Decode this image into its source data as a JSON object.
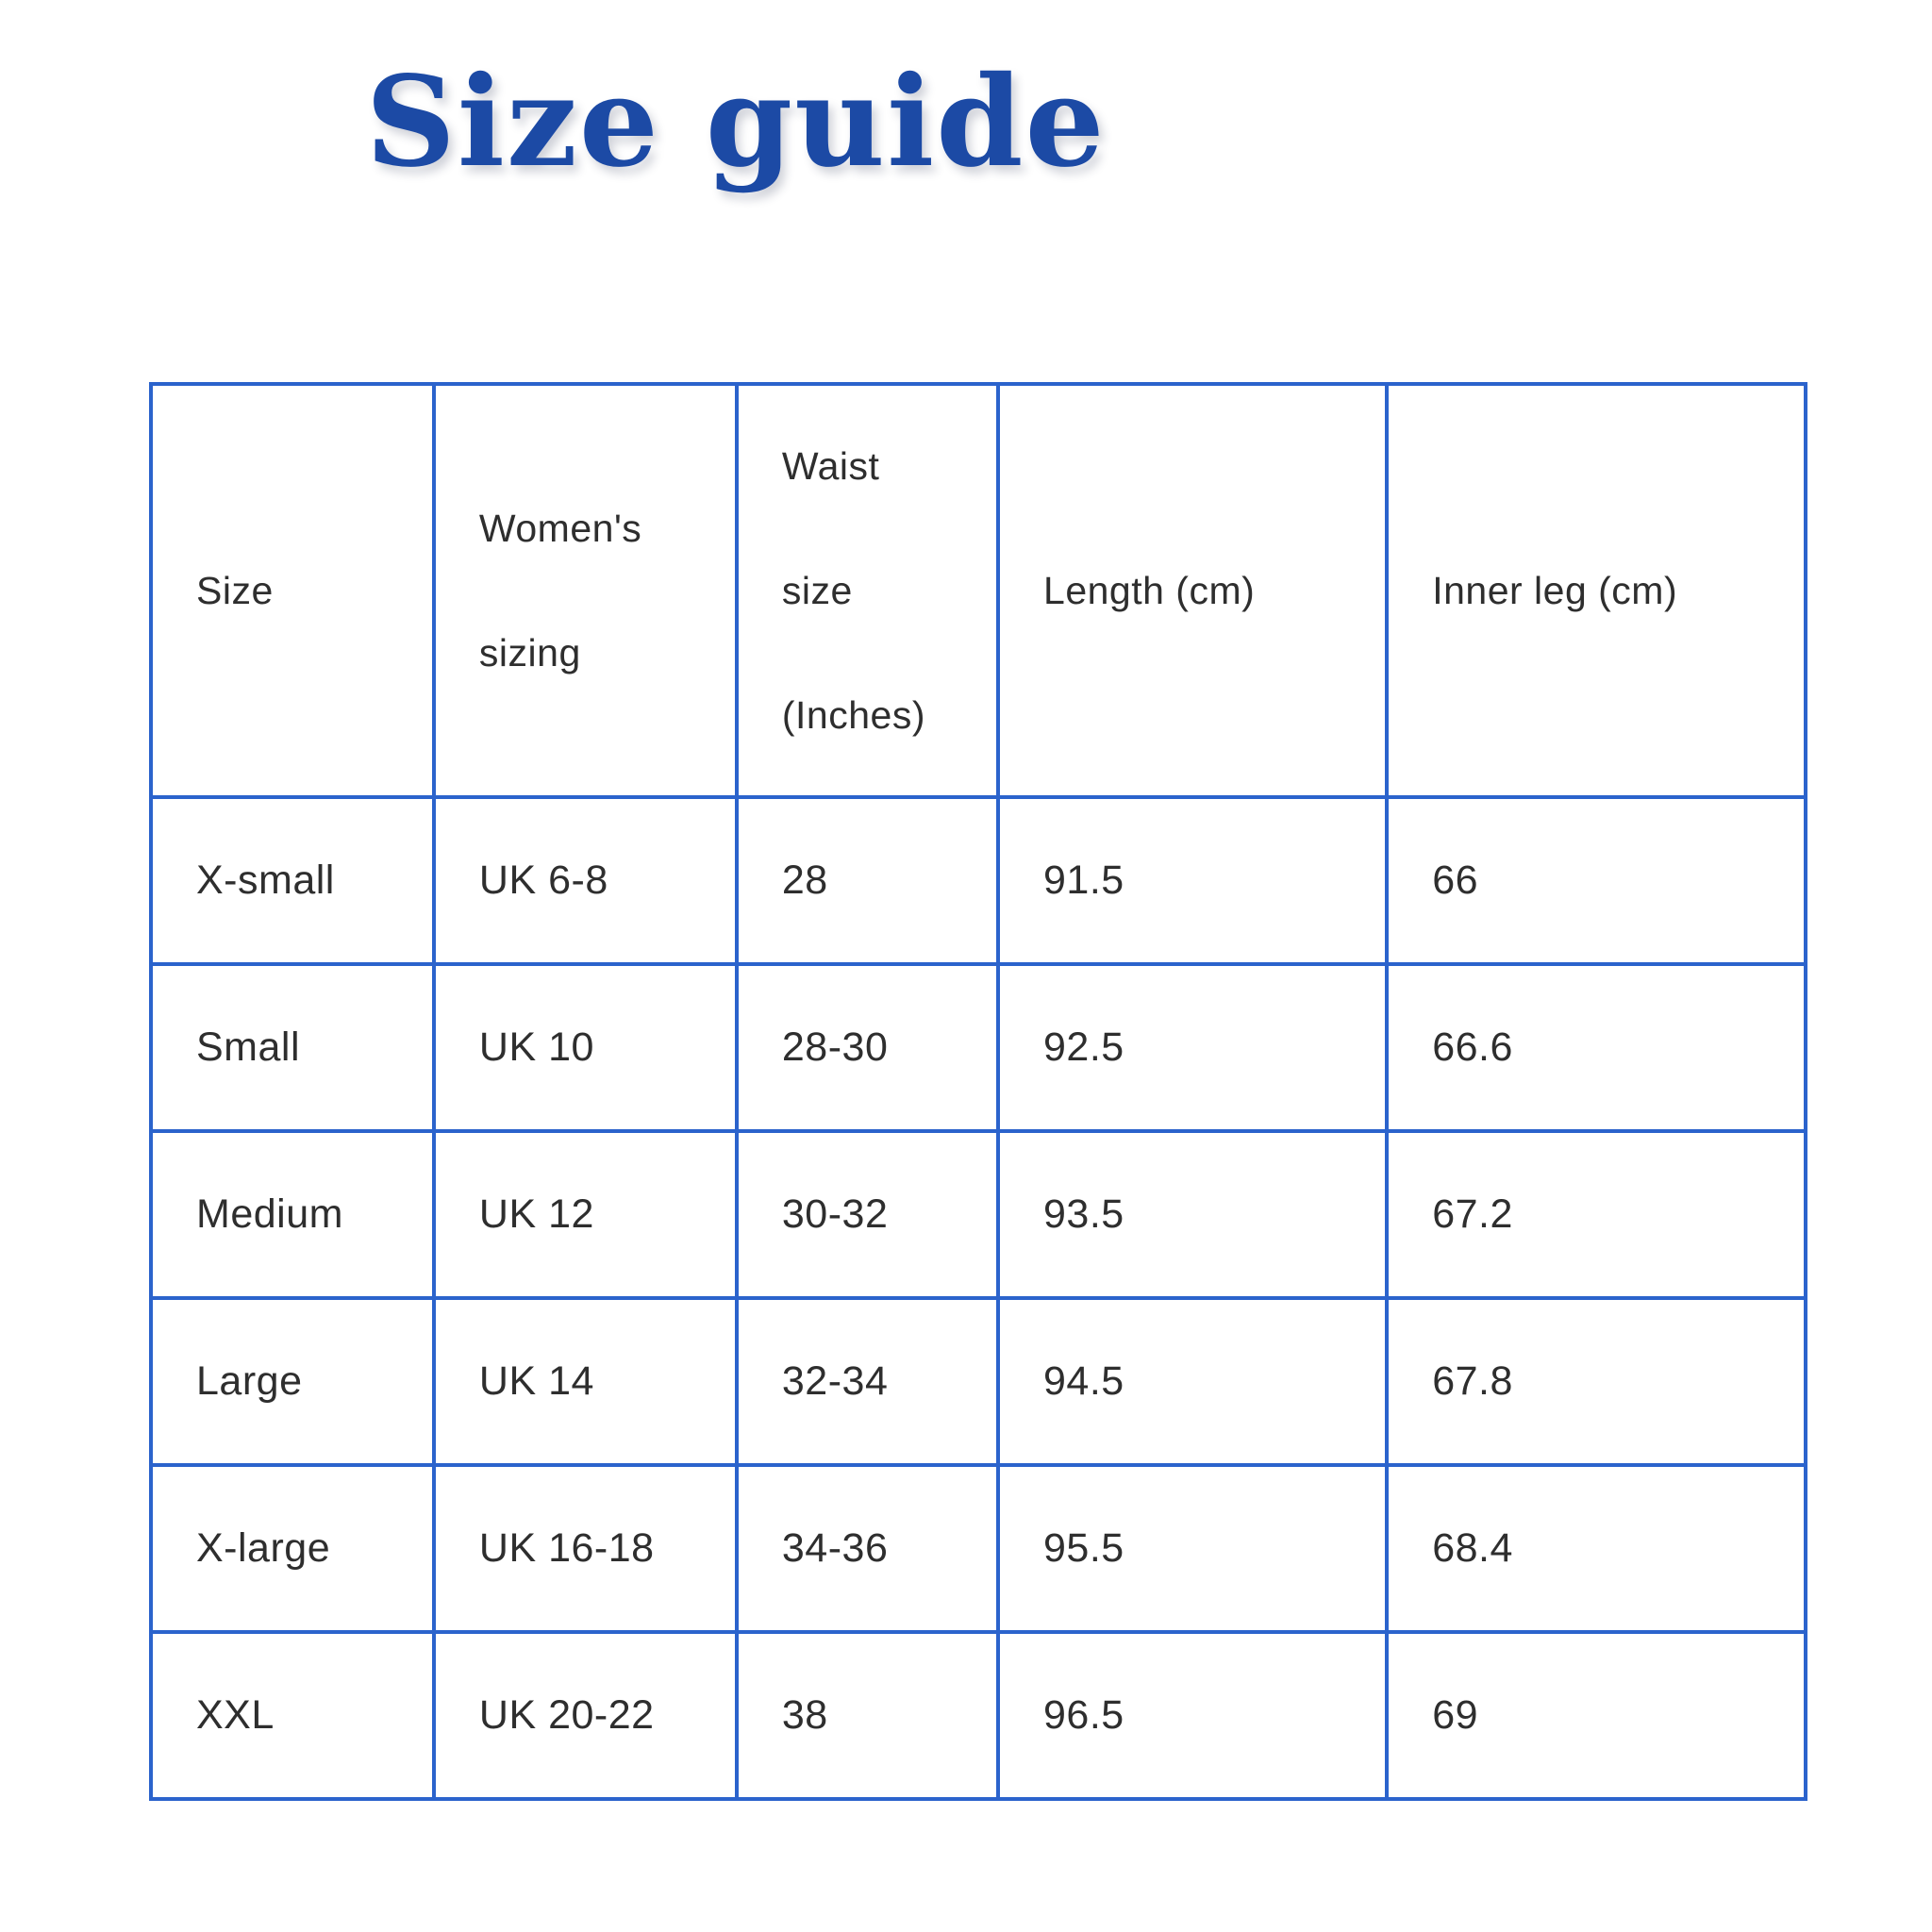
{
  "page": {
    "title": "Size guide",
    "background_color": "#ffffff",
    "title_color": "#1c4aa5",
    "table_border_color": "#2b63cc",
    "table_text_color": "#2e2e2e"
  },
  "table": {
    "columns": [
      {
        "label": "Size",
        "lines": [
          "Size"
        ]
      },
      {
        "label": "Women's sizing",
        "lines": [
          "Women's",
          "sizing"
        ]
      },
      {
        "label": "Waist size (Inches)",
        "lines": [
          "Waist",
          "size",
          "(Inches)"
        ]
      },
      {
        "label": "Length (cm)",
        "lines": [
          "Length (cm)"
        ]
      },
      {
        "label": "Inner leg (cm)",
        "lines": [
          "Inner leg (cm)"
        ]
      }
    ],
    "rows": [
      {
        "size": "X-small",
        "womens_sizing": "UK 6-8",
        "waist_inches": "28",
        "length_cm": "91.5",
        "inner_leg_cm": "66"
      },
      {
        "size": "Small",
        "womens_sizing": "UK 10",
        "waist_inches": "28-30",
        "length_cm": "92.5",
        "inner_leg_cm": "66.6"
      },
      {
        "size": "Medium",
        "womens_sizing": "UK 12",
        "waist_inches": "30-32",
        "length_cm": "93.5",
        "inner_leg_cm": "67.2"
      },
      {
        "size": "Large",
        "womens_sizing": "UK 14",
        "waist_inches": "32-34",
        "length_cm": "94.5",
        "inner_leg_cm": "67.8"
      },
      {
        "size": "X-large",
        "womens_sizing": "UK 16-18",
        "waist_inches": "34-36",
        "length_cm": "95.5",
        "inner_leg_cm": "68.4"
      },
      {
        "size": "XXL",
        "womens_sizing": "UK 20-22",
        "waist_inches": "38",
        "length_cm": "96.5",
        "inner_leg_cm": "69"
      }
    ]
  },
  "chart_data": {
    "type": "table",
    "title": "Size guide",
    "columns": [
      "Size",
      "Women's sizing",
      "Waist size (Inches)",
      "Length (cm)",
      "Inner leg (cm)"
    ],
    "rows": [
      [
        "X-small",
        "UK 6-8",
        "28",
        "91.5",
        "66"
      ],
      [
        "Small",
        "UK 10",
        "28-30",
        "92.5",
        "66.6"
      ],
      [
        "Medium",
        "UK 12",
        "30-32",
        "93.5",
        "67.2"
      ],
      [
        "Large",
        "UK 14",
        "32-34",
        "94.5",
        "67.8"
      ],
      [
        "X-large",
        "UK 16-18",
        "34-36",
        "95.5",
        "68.4"
      ],
      [
        "XXL",
        "UK 20-22",
        "38",
        "96.5",
        "69"
      ]
    ]
  }
}
